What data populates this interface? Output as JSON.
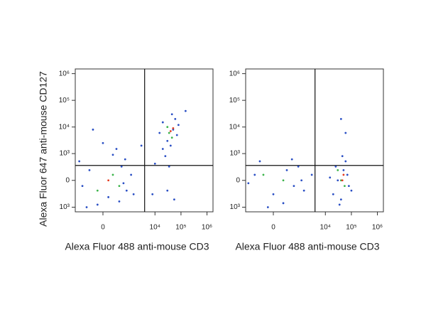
{
  "chart_data": [
    {
      "type": "scatter",
      "x_label": "Alexa Fluor 488 anti-mouse CD3",
      "y_label": "Alexa Fluor 647 anti-mouse CD127",
      "xlim": [
        -1150,
        1700000
      ],
      "ylim": [
        -1500,
        1500000
      ],
      "xticks": [
        0,
        {
          "value": 10000,
          "label": "10⁴"
        },
        {
          "value": 100000,
          "label": "10⁵"
        },
        {
          "value": 1000000,
          "label": "10⁶"
        }
      ],
      "yticks": [
        {
          "value": -1000,
          "label": "10³"
        },
        0,
        {
          "value": 1000,
          "label": "10³"
        },
        {
          "value": 10000,
          "label": "10⁴"
        },
        {
          "value": 100000,
          "label": "10⁵"
        },
        {
          "value": 1000000,
          "label": "10⁶"
        }
      ],
      "quadrant_gate": {
        "x": 4000,
        "y": 335
      },
      "series": [
        {
          "color": "#2a4fc4",
          "x": [
            -300,
            100,
            500,
            800,
            -600,
            200,
            1200,
            -100,
            400,
            700,
            -800,
            300,
            1500,
            0,
            -400,
            600,
            30000,
            50000,
            20000,
            70000,
            40000,
            25000,
            35000,
            60000,
            15000,
            45000,
            80000,
            30000,
            20000,
            55000,
            10000,
            3000,
            -200,
            8000,
            150000
          ],
          "y": [
            200,
            -400,
            300,
            -200,
            -100,
            900,
            100,
            -800,
            -600,
            600,
            500,
            1500,
            -300,
            2500,
            -1000,
            -50,
            3000,
            8000,
            15000,
            5000,
            2000,
            800,
            300,
            20000,
            6000,
            30000,
            12000,
            -200,
            1500,
            -500,
            400,
            2000,
            8000,
            -300,
            40000
          ]
        },
        {
          "color": "#3cb44b",
          "x": [
            200,
            -100,
            400,
            35000,
            30000,
            45000
          ],
          "y": [
            100,
            -200,
            -100,
            6000,
            10000,
            4000
          ]
        },
        {
          "color": "#e53a1e",
          "x": [
            40000,
            50000,
            100
          ],
          "y": [
            7000,
            9000,
            0
          ]
        }
      ]
    },
    {
      "type": "scatter",
      "x_label": "Alexa Fluor 488 anti-mouse CD3",
      "xlim": [
        -1150,
        1700000
      ],
      "ylim": [
        -1500,
        1500000
      ],
      "xticks": [
        0,
        {
          "value": 10000,
          "label": "10⁴"
        },
        {
          "value": 100000,
          "label": "10⁵"
        },
        {
          "value": 1000000,
          "label": "10⁶"
        }
      ],
      "yticks": [
        {
          "value": -1000,
          "label": "10³"
        },
        0,
        {
          "value": 1000,
          "label": "10³"
        },
        {
          "value": 10000,
          "label": "10⁴"
        },
        {
          "value": 100000,
          "label": "10⁵"
        },
        {
          "value": 1000000,
          "label": "10⁶"
        }
      ],
      "quadrant_gate": {
        "x": 4000,
        "y": 335
      },
      "series": [
        {
          "color": "#2a4fc4",
          "x": [
            -500,
            0,
            300,
            600,
            -900,
            900,
            200,
            -300,
            1200,
            500,
            -100,
            1500,
            30000,
            50000,
            20000,
            70000,
            40000,
            60000,
            25000,
            80000,
            15000,
            45000,
            100000,
            35000,
            60000,
            40000,
            3000
          ],
          "y": [
            100,
            -300,
            200,
            -100,
            -50,
            300,
            -700,
            500,
            0,
            600,
            -1000,
            -200,
            0,
            200,
            -300,
            100,
            -500,
            500,
            300,
            -100,
            50,
            800,
            -200,
            -800,
            6000,
            20000,
            100
          ]
        },
        {
          "color": "#3cb44b",
          "x": [
            200,
            -200,
            40000,
            55000,
            30000
          ],
          "y": [
            0,
            100,
            0,
            -100,
            200
          ]
        },
        {
          "color": "#e53a1e",
          "x": [
            45000,
            50000
          ],
          "y": [
            0,
            100
          ]
        }
      ]
    }
  ]
}
